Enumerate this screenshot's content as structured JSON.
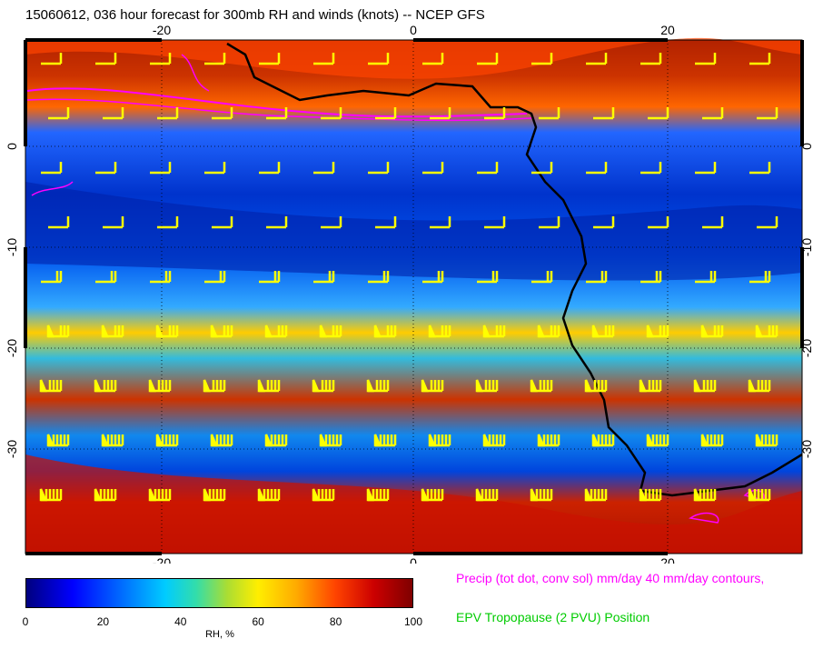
{
  "title": "15060612, 036 hour forecast for 300mb RH and winds (knots) -- NCEP GFS",
  "legend": {
    "precip": "Precip (tot dot, conv sol) mm/day 40 mm/day contours,",
    "tropopause": "EPV Tropopause (2 PVU) Position"
  },
  "colorbar": {
    "label": "RH, %",
    "ticks": [
      "0",
      "20",
      "40",
      "60",
      "80",
      "100"
    ]
  },
  "axes": {
    "x_ticks": [
      "-20",
      "0",
      "20"
    ],
    "y_ticks": [
      "0",
      "-10",
      "-20",
      "-30"
    ]
  },
  "colors": {
    "wind_barbs": "#ffff00",
    "precip_contours": "#ff00ff",
    "coastline": "#000000"
  }
}
